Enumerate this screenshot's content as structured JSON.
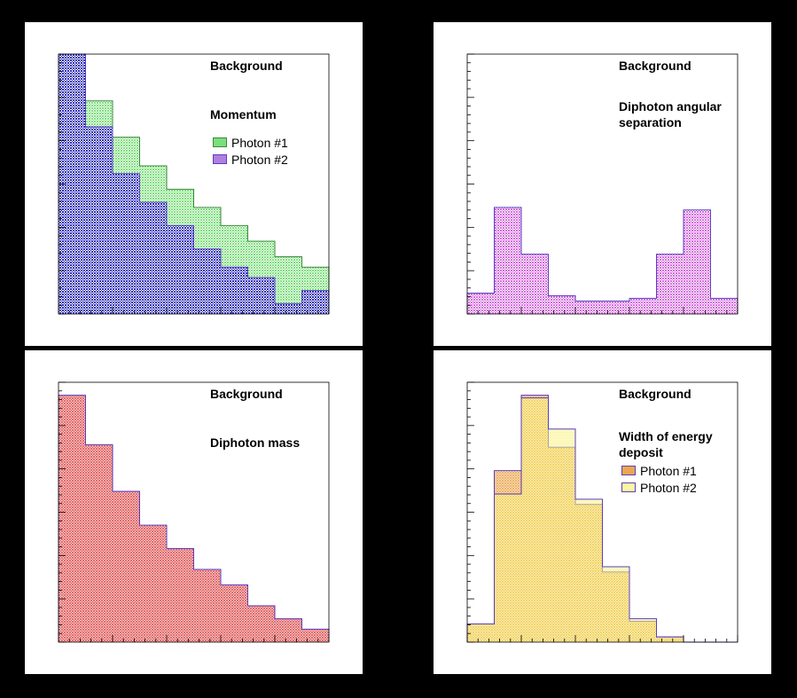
{
  "colors": {
    "green": "#7be07b",
    "blue": "#2a2ab8",
    "magenta": "#d66ce0",
    "red": "#e05858",
    "orange": "#eba64f",
    "yellow": "#f6ee4a",
    "outline_green": "#3a8a3a",
    "outline_purple": "#5a3fc0",
    "outline_red": "#b02040"
  },
  "chart_data": [
    {
      "type": "histogram",
      "title": "Background",
      "subtitle": "Momentum",
      "xlim": [
        0,
        10
      ],
      "ylim": [
        0,
        100
      ],
      "legend": [
        "Photon #1",
        "Photon #2"
      ],
      "legend_position": "top-right",
      "series": [
        {
          "name": "Photon #1",
          "color": "green",
          "values": [
            100,
            82,
            68,
            57,
            48,
            41,
            34,
            28,
            22,
            18
          ]
        },
        {
          "name": "Photon #2",
          "color": "blue",
          "values": [
            100,
            72,
            54,
            43,
            34,
            25,
            18,
            14,
            4,
            9
          ]
        }
      ]
    },
    {
      "type": "histogram",
      "title": "Background",
      "subtitle": "Diphoton angular separation",
      "xlim": [
        0,
        10
      ],
      "ylim": [
        0,
        100
      ],
      "series": [
        {
          "name": "Diphoton angular separation",
          "color": "magenta",
          "values": [
            8,
            41,
            23,
            7,
            5,
            5,
            6,
            23,
            40,
            6
          ]
        }
      ]
    },
    {
      "type": "histogram",
      "title": "Background",
      "subtitle": "Diphoton mass",
      "xlim": [
        0,
        10
      ],
      "ylim": [
        0,
        100
      ],
      "series": [
        {
          "name": "Diphoton mass",
          "color": "red",
          "values": [
            95,
            76,
            58,
            45,
            36,
            28,
            22,
            14,
            9,
            5
          ]
        }
      ]
    },
    {
      "type": "histogram",
      "title": "Background",
      "subtitle": "Width of energy deposit",
      "xlim": [
        0,
        10
      ],
      "ylim": [
        0,
        100
      ],
      "legend": [
        "Photon #1",
        "Photon #2"
      ],
      "legend_position": "top-right",
      "series": [
        {
          "name": "Photon #1",
          "color": "orange",
          "values": [
            7,
            66,
            95,
            75,
            53,
            27,
            8,
            2,
            0,
            0
          ]
        },
        {
          "name": "Photon #2",
          "color": "yellow",
          "values": [
            7,
            57,
            94,
            82,
            55,
            29,
            9,
            2,
            0,
            0
          ]
        }
      ]
    }
  ]
}
